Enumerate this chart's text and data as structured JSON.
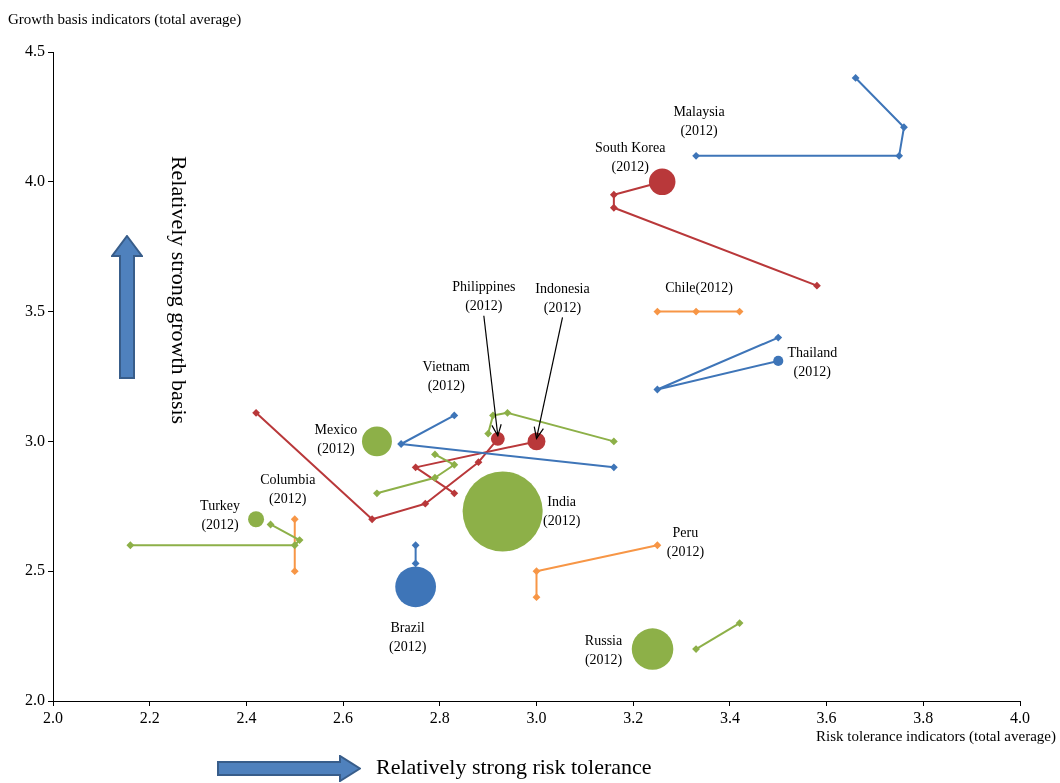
{
  "chart_data": {
    "type": "bubble",
    "xlabel": "Risk tolerance indicators (total average)",
    "ylabel": "Growth basis indicators (total average)",
    "xlim": [
      2.0,
      4.0
    ],
    "xticks": [
      {
        "value": 2.0,
        "label": "2.0"
      },
      {
        "value": 2.2,
        "label": "2.2"
      },
      {
        "value": 2.4,
        "label": "2.4"
      },
      {
        "value": 2.6,
        "label": "2.6"
      },
      {
        "value": 2.8,
        "label": "2.8"
      },
      {
        "value": 3.0,
        "label": "3.0"
      },
      {
        "value": 3.2,
        "label": "3.2"
      },
      {
        "value": 3.4,
        "label": "3.4"
      },
      {
        "value": 3.6,
        "label": "3.6"
      },
      {
        "value": 3.8,
        "label": "3.8"
      },
      {
        "value": 4.0,
        "label": "4.0"
      }
    ],
    "ylim": [
      2.0,
      4.5
    ],
    "yticks": [
      {
        "value": 2.0,
        "label": "2.0"
      },
      {
        "value": 2.5,
        "label": "2.5"
      },
      {
        "value": 3.0,
        "label": "3.0"
      },
      {
        "value": 3.5,
        "label": "3.5"
      },
      {
        "value": 4.0,
        "label": "4.0"
      },
      {
        "value": 4.5,
        "label": "4.5"
      }
    ],
    "marker": "diamond",
    "series": [
      {
        "type": "line",
        "color": "#3e75b8",
        "x": [
          3.66,
          3.76,
          3.75,
          3.33
        ],
        "values": [
          4.4,
          4.21,
          4.1,
          4.1
        ]
      },
      {
        "type": "line",
        "color": "#b9383a",
        "x": [
          3.58,
          3.16,
          3.16,
          3.26
        ],
        "values": [
          3.6,
          3.9,
          3.95,
          4.0
        ]
      },
      {
        "type": "line",
        "color": "#f79646",
        "x": [
          3.25,
          3.42,
          3.33
        ],
        "values": [
          3.5,
          3.5,
          3.5
        ]
      },
      {
        "type": "line",
        "color": "#3e75b8",
        "x": [
          3.5,
          3.25,
          3.5
        ],
        "values": [
          3.4,
          3.2,
          3.31
        ]
      },
      {
        "type": "line",
        "color": "#3e75b8",
        "x": [
          3.16,
          2.72,
          2.83
        ],
        "values": [
          2.9,
          2.99,
          3.1
        ]
      },
      {
        "type": "line",
        "color": "#8db048",
        "x": [
          2.67,
          2.79,
          2.83,
          2.79
        ],
        "values": [
          2.8,
          2.86,
          2.91,
          2.95
        ]
      },
      {
        "type": "line",
        "color": "#b9383a",
        "x": [
          2.42,
          2.66,
          2.77,
          2.88,
          2.92
        ],
        "values": [
          3.11,
          2.7,
          2.76,
          2.92,
          3.01
        ]
      },
      {
        "type": "line",
        "color": "#b9383a",
        "x": [
          2.83,
          2.75,
          3.0
        ],
        "values": [
          2.8,
          2.9,
          3.0
        ]
      },
      {
        "type": "line",
        "color": "#8db048",
        "x": [
          3.16,
          2.94,
          2.91,
          2.9
        ],
        "values": [
          3.0,
          3.11,
          3.1,
          3.03
        ]
      },
      {
        "type": "line",
        "color": "#8db048",
        "x": [
          2.16,
          2.5,
          2.51,
          2.45
        ],
        "values": [
          2.6,
          2.6,
          2.62,
          2.68
        ]
      },
      {
        "type": "line",
        "color": "#f79646",
        "x": [
          2.5,
          2.5
        ],
        "values": [
          2.5,
          2.7
        ]
      },
      {
        "type": "line",
        "color": "#3e75b8",
        "x": [
          2.75,
          2.75
        ],
        "values": [
          2.6,
          2.53
        ]
      },
      {
        "type": "line",
        "color": "#f79646",
        "x": [
          3.0,
          3.0,
          3.25
        ],
        "values": [
          2.4,
          2.5,
          2.6
        ]
      },
      {
        "type": "line",
        "color": "#8db048",
        "x": [
          3.42,
          3.33
        ],
        "values": [
          2.3,
          2.2
        ]
      },
      {
        "type": "bubble",
        "x": [
          3.33,
          3.26,
          3.33,
          3.5,
          2.83,
          2.67,
          2.92,
          3.0,
          2.93,
          2.42,
          2.5,
          2.75,
          3.25,
          3.24
        ],
        "values": [
          4.1,
          4.0,
          3.5,
          3.31,
          3.1,
          3.0,
          3.01,
          3.0,
          2.73,
          2.7,
          2.7,
          2.44,
          2.6,
          2.2
        ],
        "sizes": [
          0.0025,
          0.11,
          0.0025,
          0.016,
          0.0025,
          0.14,
          0.03,
          0.05,
          1,
          0.04,
          0.0025,
          0.26,
          0.0025,
          0.27
        ],
        "colors": [
          "#3e75b8",
          "#b9383a",
          "#f79646",
          "#3e75b8",
          "#3e75b8",
          "#8db048",
          "#b9383a",
          "#b9383a",
          "#8db048",
          "#8db048",
          "#f79646",
          "#3e75b8",
          "#f79646",
          "#8db048"
        ]
      }
    ],
    "annotations": [
      {
        "text": "Malaysia (2012)",
        "x": 3.33,
        "y": 4.1
      },
      {
        "text": "South Korea (2012)",
        "x": 3.26,
        "y": 4.0
      },
      {
        "text": "Chile(2012)",
        "x": 3.33,
        "y": 3.5
      },
      {
        "text": "Thailand (2012)",
        "x": 3.5,
        "y": 3.31
      },
      {
        "text": "Vietnam (2012)",
        "x": 2.83,
        "y": 3.1
      },
      {
        "text": "Mexico (2012)",
        "x": 2.67,
        "y": 3.0
      },
      {
        "text": "Philippines (2012)",
        "x": 2.92,
        "y": 3.01
      },
      {
        "text": "Indonesia (2012)",
        "x": 3.0,
        "y": 3.0
      },
      {
        "text": "India (2012)",
        "x": 2.93,
        "y": 2.73
      },
      {
        "text": "Turkey (2012)",
        "x": 2.42,
        "y": 2.7
      },
      {
        "text": "Columbia (2012)",
        "x": 2.5,
        "y": 2.7
      },
      {
        "text": "Brazil (2012)",
        "x": 2.75,
        "y": 2.44
      },
      {
        "text": "Peru (2012)",
        "x": 3.25,
        "y": 2.6
      },
      {
        "text": "Russia (2012)",
        "x": 3.24,
        "y": 2.2
      },
      "Relatively strong growth basis",
      "Relatively strong risk tolerance"
    ]
  }
}
